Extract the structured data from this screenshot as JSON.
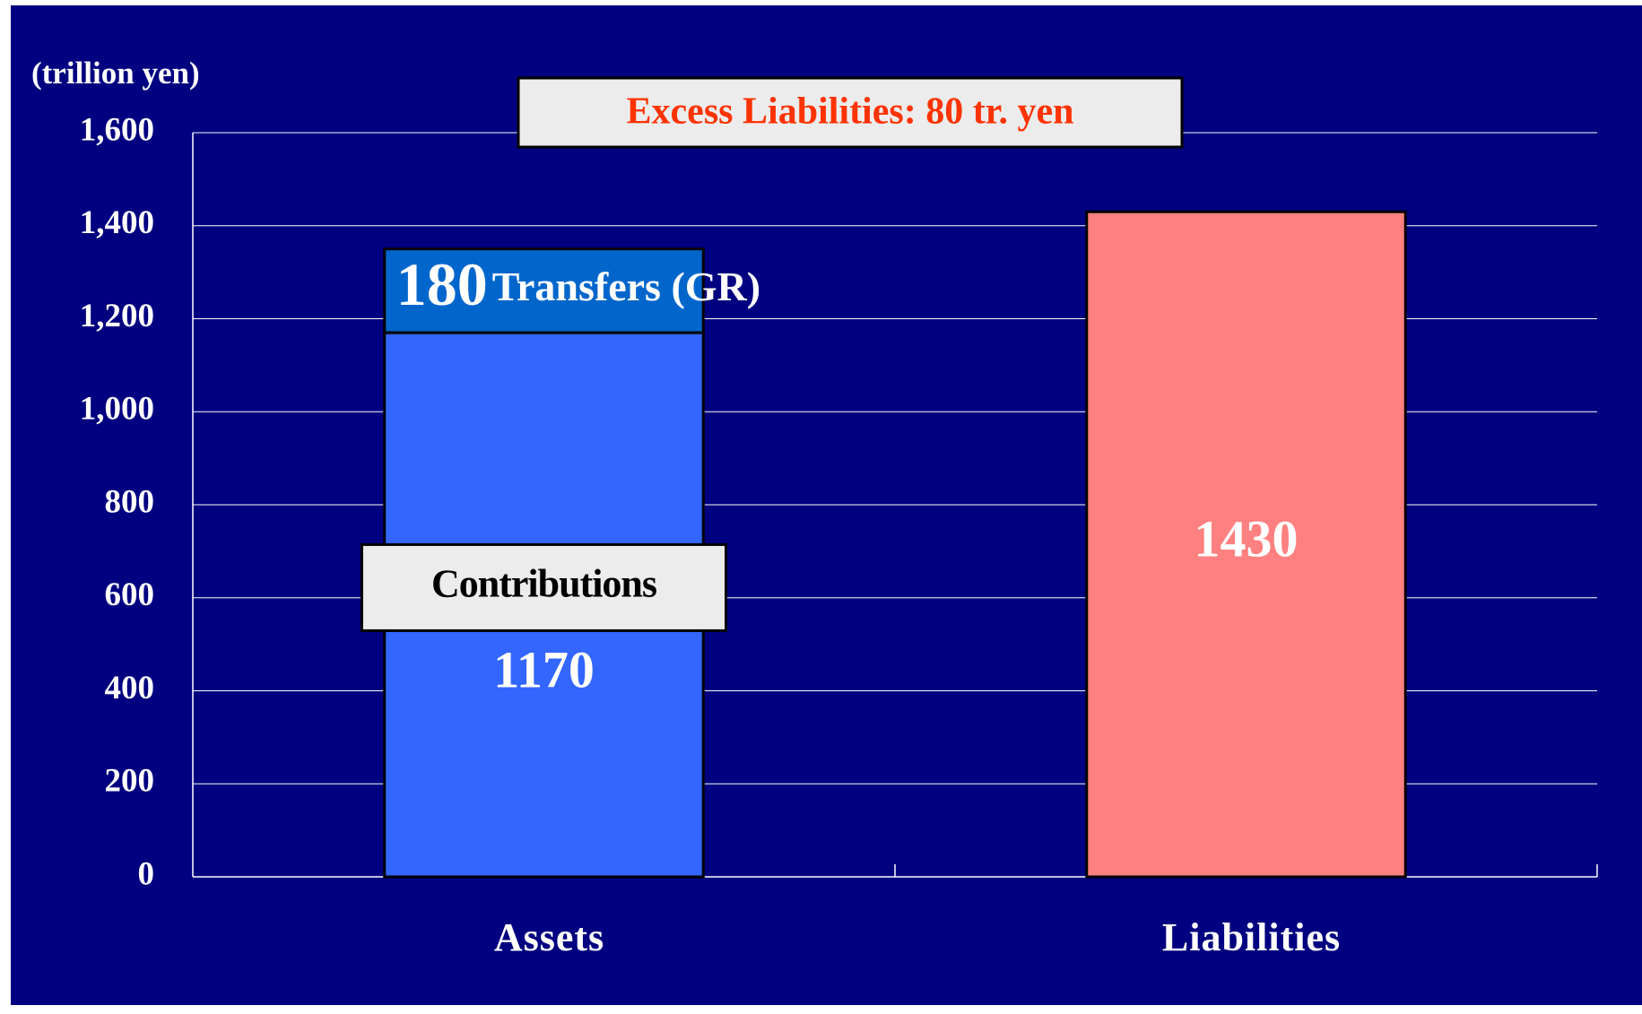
{
  "chart_data": {
    "type": "stacked_bar",
    "y_axis_label": "(trillion yen)",
    "annotation": "Excess Liabilities: 80 tr. yen",
    "categories": [
      "Assets",
      "Liabilities"
    ],
    "series": [
      {
        "name": "Contributions",
        "color": "#3366ff",
        "values": [
          1170,
          null
        ]
      },
      {
        "name": "Transfers (GR)",
        "color": "#0066cc",
        "values": [
          180,
          null
        ]
      },
      {
        "color": "#ff8080",
        "values": [
          null,
          1430
        ]
      }
    ],
    "ylim": [
      0,
      1600
    ],
    "yticks": [
      0,
      200,
      400,
      600,
      800,
      {
        "value": 1000,
        "label": "1,000"
      },
      {
        "value": 1200,
        "label": "1,200"
      },
      {
        "value": 1400,
        "label": "1,400"
      },
      {
        "value": 1600,
        "label": "1,600"
      }
    ],
    "grid": true
  }
}
